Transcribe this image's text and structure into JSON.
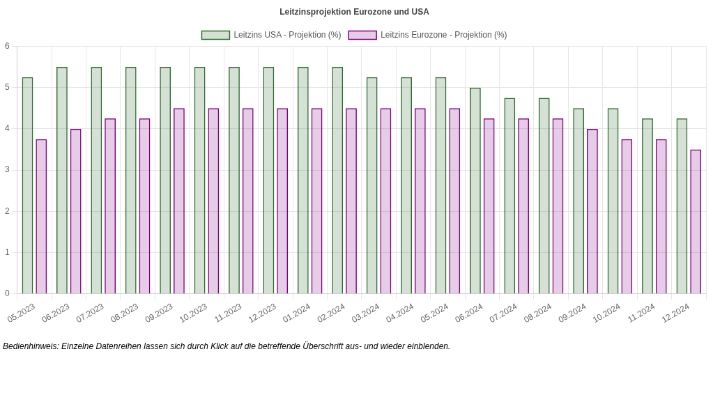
{
  "chart_data": {
    "type": "bar",
    "title": "Leitzinsprojektion Eurozone und USA",
    "categories": [
      "05.2023",
      "06.2023",
      "07.2023",
      "08.2023",
      "09.2023",
      "10.2023",
      "11.2023",
      "12.2023",
      "01.2024",
      "02.2024",
      "03.2024",
      "04.2024",
      "05.2024",
      "06.2024",
      "07.2024",
      "08.2024",
      "09.2024",
      "10.2024",
      "11.2024",
      "12.2024"
    ],
    "series": [
      {
        "name": "Leitzins USA - Projektion (%)",
        "color": "#2e6b2e",
        "values": [
          5.25,
          5.5,
          5.5,
          5.5,
          5.5,
          5.5,
          5.5,
          5.5,
          5.5,
          5.5,
          5.25,
          5.25,
          5.25,
          5.0,
          4.75,
          4.75,
          4.5,
          4.5,
          4.25,
          4.25
        ]
      },
      {
        "name": "Leitzins Eurozone - Projektion (%)",
        "color": "#800080",
        "values": [
          3.75,
          4.0,
          4.25,
          4.25,
          4.5,
          4.5,
          4.5,
          4.5,
          4.5,
          4.5,
          4.5,
          4.5,
          4.5,
          4.25,
          4.25,
          4.25,
          4.0,
          3.75,
          3.75,
          3.5
        ]
      }
    ],
    "ylim": [
      0,
      6
    ],
    "yticks": [
      0,
      1,
      2,
      3,
      4,
      5,
      6
    ],
    "grid": true,
    "legend": "top",
    "annotations": [
      "Bedienhinweis: Einzelne Datenreihen lassen sich durch Klick auf die betreffende Überschrift aus- und wieder einblenden."
    ]
  }
}
